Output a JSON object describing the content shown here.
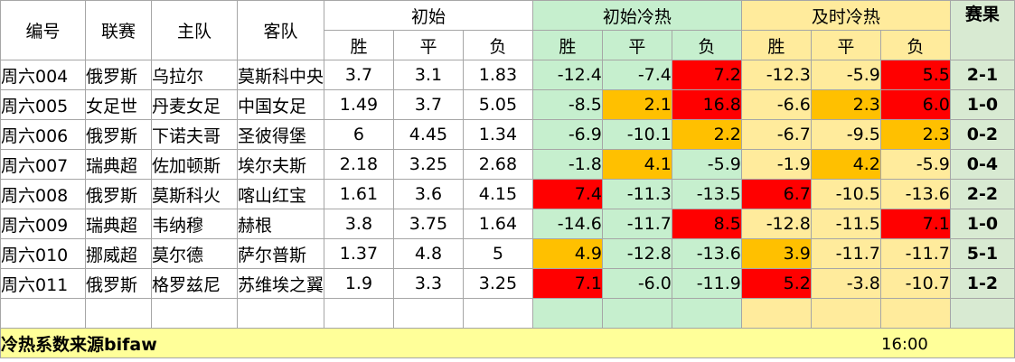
{
  "header": {
    "col_id": "编号",
    "col_league": "联赛",
    "col_home": "主队",
    "col_away": "客队",
    "group_initial": "初始",
    "group_initial_hot": "初始冷热",
    "group_live_hot": "及时冷热",
    "col_result": "赛果",
    "win": "胜",
    "draw": "平",
    "lose": "负"
  },
  "colors": {
    "green": "#c6efce",
    "amber": "#ffeb9c",
    "orange": "#ffc000",
    "red": "#ff0000",
    "footer": "#ffff99"
  },
  "rows": [
    {
      "id": "周六004",
      "league": "俄罗斯",
      "home": "乌拉尔",
      "away": "莫斯科中央",
      "init": [
        "3.7",
        "3.1",
        "1.83"
      ],
      "ih": [
        "-12.4",
        "-7.4",
        "7.2"
      ],
      "ih_c": [
        "",
        "",
        "red"
      ],
      "lh": [
        "-12.3",
        "-5.9",
        "5.5"
      ],
      "lh_c": [
        "",
        "",
        "red"
      ],
      "result": "2-1"
    },
    {
      "id": "周六005",
      "league": "女足世",
      "home": "丹麦女足",
      "away": "中国女足",
      "init": [
        "1.49",
        "3.7",
        "5.05"
      ],
      "ih": [
        "-8.5",
        "2.1",
        "16.8"
      ],
      "ih_c": [
        "",
        "orange",
        "red"
      ],
      "lh": [
        "-6.6",
        "2.3",
        "6.0"
      ],
      "lh_c": [
        "",
        "orange",
        "red"
      ],
      "result": "1-0"
    },
    {
      "id": "周六006",
      "league": "俄罗斯",
      "home": "下诺夫哥",
      "away": "圣彼得堡",
      "init": [
        "6",
        "4.45",
        "1.34"
      ],
      "ih": [
        "-6.9",
        "-10.1",
        "2.2"
      ],
      "ih_c": [
        "",
        "",
        "orange"
      ],
      "lh": [
        "-6.7",
        "-9.5",
        "2.3"
      ],
      "lh_c": [
        "",
        "",
        "orange"
      ],
      "result": "0-2"
    },
    {
      "id": "周六007",
      "league": "瑞典超",
      "home": "佐加顿斯",
      "away": "埃尔夫斯",
      "init": [
        "2.18",
        "3.25",
        "2.68"
      ],
      "ih": [
        "-1.8",
        "4.1",
        "-5.9"
      ],
      "ih_c": [
        "",
        "orange",
        ""
      ],
      "lh": [
        "-1.9",
        "4.2",
        "-5.9"
      ],
      "lh_c": [
        "",
        "orange",
        ""
      ],
      "result": "0-4"
    },
    {
      "id": "周六008",
      "league": "俄罗斯",
      "home": "莫斯科火",
      "away": "喀山红宝",
      "init": [
        "1.61",
        "3.6",
        "4.15"
      ],
      "ih": [
        "7.4",
        "-11.3",
        "-13.5"
      ],
      "ih_c": [
        "red",
        "",
        ""
      ],
      "lh": [
        "6.7",
        "-10.5",
        "-13.6"
      ],
      "lh_c": [
        "red",
        "",
        ""
      ],
      "result": "2-2"
    },
    {
      "id": "周六009",
      "league": "瑞典超",
      "home": "韦纳穆",
      "away": "赫根",
      "init": [
        "3.8",
        "3.75",
        "1.64"
      ],
      "ih": [
        "-14.6",
        "-11.7",
        "8.5"
      ],
      "ih_c": [
        "",
        "",
        "red"
      ],
      "lh": [
        "-12.8",
        "-11.5",
        "7.1"
      ],
      "lh_c": [
        "",
        "",
        "red"
      ],
      "result": "1-0"
    },
    {
      "id": "周六010",
      "league": "挪威超",
      "home": "莫尔德",
      "away": "萨尔普斯",
      "init": [
        "1.37",
        "4.8",
        "5"
      ],
      "ih": [
        "4.9",
        "-12.8",
        "-13.6"
      ],
      "ih_c": [
        "orange",
        "",
        ""
      ],
      "lh": [
        "3.9",
        "-11.7",
        "-11.7"
      ],
      "lh_c": [
        "orange",
        "",
        ""
      ],
      "result": "5-1"
    },
    {
      "id": "周六011",
      "league": "俄罗斯",
      "home": "格罗兹尼",
      "away": "苏维埃之翼",
      "init": [
        "1.9",
        "3.3",
        "3.25"
      ],
      "ih": [
        "7.1",
        "-6.0",
        "-11.9"
      ],
      "ih_c": [
        "red",
        "",
        ""
      ],
      "lh": [
        "5.2",
        "-3.8",
        "-10.7"
      ],
      "lh_c": [
        "red",
        "",
        ""
      ],
      "result": "1-2"
    }
  ],
  "footer": {
    "label": "冷热系数来源bifaw",
    "time": "16:00"
  }
}
